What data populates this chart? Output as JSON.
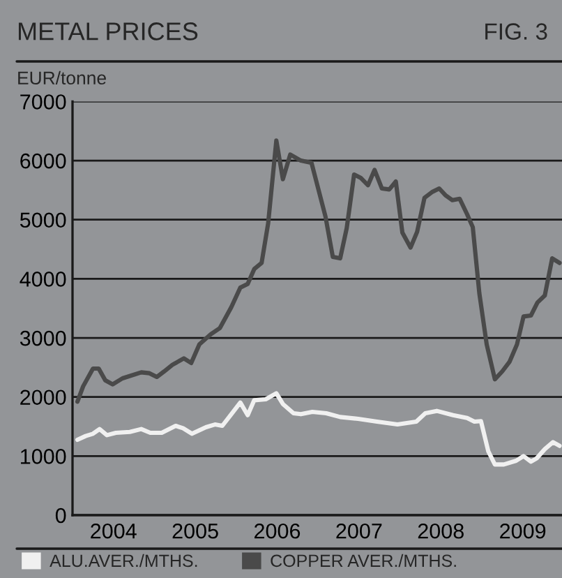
{
  "chart_data": {
    "type": "line",
    "title": "METAL PRICES",
    "subtitle": "FIG. 3",
    "ylabel": "EUR/tonne",
    "xlim": [
      2004,
      2009.98
    ],
    "xticks": [
      {
        "value": 2004.5,
        "label": "2004"
      },
      {
        "value": 2005.5,
        "label": "2005"
      },
      {
        "value": 2006.5,
        "label": "2006"
      },
      {
        "value": 2007.5,
        "label": "2007"
      },
      {
        "value": 2008.5,
        "label": "2008"
      },
      {
        "value": 2009.5,
        "label": "2009"
      }
    ],
    "ylim": [
      0,
      7000
    ],
    "yticks": [
      0,
      1000,
      2000,
      3000,
      4000,
      5000,
      6000,
      7000
    ],
    "grid": "y",
    "legend": "bottom",
    "marker": "none",
    "line_style": "solid",
    "series": [
      {
        "name": "ALU.AVER./MTHS.",
        "color": "#f0f0f0",
        "x": [
          2004.06,
          2004.16,
          2004.25,
          2004.33,
          2004.42,
          2004.53,
          2004.7,
          2004.84,
          2004.95,
          2005.09,
          2005.26,
          2005.35,
          2005.46,
          2005.63,
          2005.74,
          2005.83,
          2005.94,
          2006.05,
          2006.14,
          2006.22,
          2006.36,
          2006.49,
          2006.57,
          2006.7,
          2006.79,
          2006.93,
          2007.1,
          2007.27,
          2007.49,
          2007.72,
          2007.97,
          2008.2,
          2008.31,
          2008.45,
          2008.65,
          2008.82,
          2008.91,
          2008.99,
          2009.08,
          2009.16,
          2009.27,
          2009.42,
          2009.51,
          2009.6,
          2009.67,
          2009.77,
          2009.87,
          2009.95
        ],
        "values": [
          1276,
          1339,
          1378,
          1457,
          1354,
          1394,
          1409,
          1457,
          1394,
          1394,
          1512,
          1472,
          1378,
          1488,
          1535,
          1512,
          1709,
          1906,
          1693,
          1945,
          1961,
          2063,
          1882,
          1724,
          1709,
          1748,
          1724,
          1661,
          1630,
          1583,
          1535,
          1583,
          1724,
          1764,
          1693,
          1646,
          1583,
          1591,
          1079,
          858,
          858,
          921,
          1000,
          906,
          961,
          1118,
          1236,
          1173
        ]
      },
      {
        "name": "COPPER AVER./MTHS.",
        "color": "#4a4a4a",
        "x": [
          2004.06,
          2004.13,
          2004.25,
          2004.32,
          2004.4,
          2004.49,
          2004.61,
          2004.84,
          2004.94,
          2005.03,
          2005.12,
          2005.22,
          2005.36,
          2005.45,
          2005.55,
          2005.69,
          2005.8,
          2005.94,
          2006.05,
          2006.14,
          2006.22,
          2006.31,
          2006.39,
          2006.49,
          2006.57,
          2006.66,
          2006.79,
          2006.92,
          2007.09,
          2007.18,
          2007.27,
          2007.35,
          2007.44,
          2007.52,
          2007.61,
          2007.69,
          2007.78,
          2007.87,
          2007.95,
          2008.03,
          2008.13,
          2008.21,
          2008.3,
          2008.39,
          2008.48,
          2008.56,
          2008.64,
          2008.73,
          2008.82,
          2008.89,
          2008.97,
          2009.06,
          2009.16,
          2009.25,
          2009.34,
          2009.43,
          2009.51,
          2009.6,
          2009.68,
          2009.77,
          2009.86,
          2009.95
        ],
        "values": [
          1921,
          2181,
          2480,
          2480,
          2283,
          2213,
          2315,
          2417,
          2402,
          2339,
          2433,
          2543,
          2654,
          2575,
          2890,
          3063,
          3165,
          3520,
          3850,
          3913,
          4165,
          4268,
          4937,
          6339,
          5685,
          6102,
          6000,
          5961,
          5055,
          4370,
          4346,
          4858,
          5764,
          5709,
          5583,
          5843,
          5528,
          5512,
          5646,
          4780,
          4528,
          4795,
          5370,
          5465,
          5528,
          5409,
          5331,
          5354,
          5094,
          4874,
          3756,
          2890,
          2299,
          2433,
          2598,
          2890,
          3362,
          3378,
          3598,
          3717,
          4346,
          4268
        ]
      }
    ]
  }
}
